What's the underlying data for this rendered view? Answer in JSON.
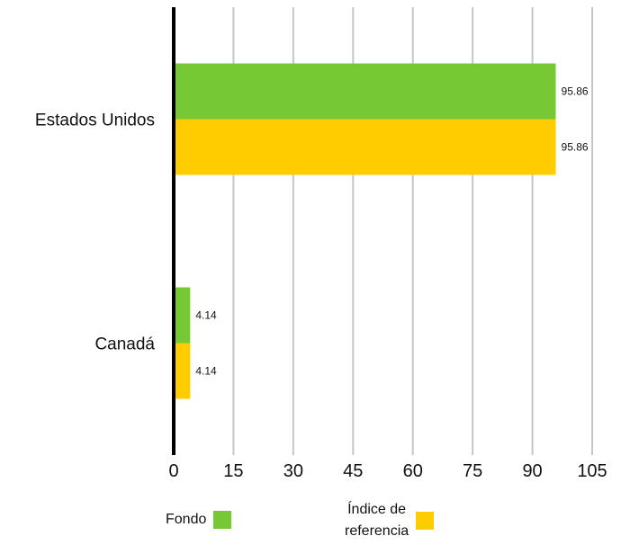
{
  "chart_data": {
    "type": "bar",
    "orientation": "horizontal",
    "categories": [
      "Estados Unidos",
      "Canadá"
    ],
    "series": [
      {
        "name": "Fondo",
        "values": [
          95.86,
          4.14
        ],
        "color": "#76c935"
      },
      {
        "name": "Índice de referencia",
        "values": [
          95.86,
          4.14
        ],
        "color": "#ffcc00"
      }
    ],
    "data_labels": [
      [
        "95.86",
        "4.14"
      ],
      [
        "95.86",
        "4.14"
      ]
    ],
    "xlim": [
      0,
      105
    ],
    "x_ticks": [
      "0",
      "15",
      "30",
      "45",
      "60",
      "75",
      "90",
      "105"
    ],
    "grid": true,
    "legend_position": "bottom"
  },
  "legend": {
    "fondo_label": "Fondo",
    "indice_line1": "Índice de",
    "indice_line2": "referencia"
  }
}
